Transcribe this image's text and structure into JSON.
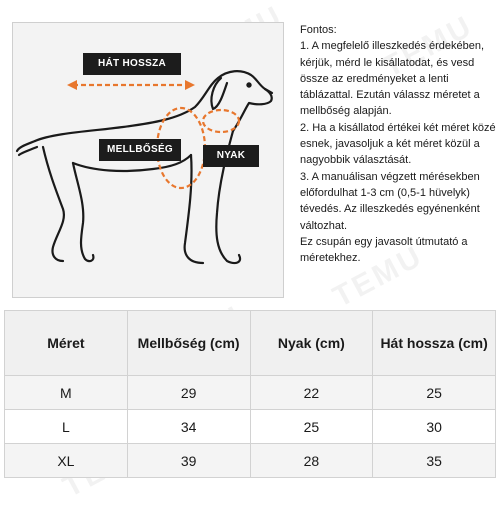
{
  "watermark": "TEMU",
  "illustration": {
    "labels": {
      "back_length": "HÁT HOSSZA",
      "chest": "MELLBŐSÉG",
      "neck": "NYAK"
    },
    "colors": {
      "outline": "#1a1a1a",
      "arrow": "#e8772e",
      "tag_bg": "#1c1c1c",
      "panel_bg": "#f3f3f3"
    }
  },
  "notes": {
    "title": "Fontos:",
    "lines": [
      "1. A megfelelő illeszkedés érdekében, kérjük, mérd le kisállatodat, és vesd össze az eredményeket a lenti táblázattal. Ezután válassz méretet a mellbőség alapján.",
      "2. Ha a kisállatod értékei két méret közé esnek, javasoljuk a két méret közül a nagyobbik választását.",
      "3. A manuálisan végzett mérésekben előfordulhat 1-3 cm (0,5-1 hüvelyk) tévedés. Az illeszkedés egyénenként változhat.",
      "Ez csupán egy javasolt útmutató a méretekhez."
    ]
  },
  "size_table": {
    "headers": [
      "Méret",
      "Mellbőség (cm)",
      "Nyak (cm)",
      "Hát hossza (cm)"
    ],
    "rows": [
      [
        "M",
        "29",
        "22",
        "25"
      ],
      [
        "L",
        "34",
        "25",
        "30"
      ],
      [
        "XL",
        "39",
        "28",
        "35"
      ]
    ]
  }
}
